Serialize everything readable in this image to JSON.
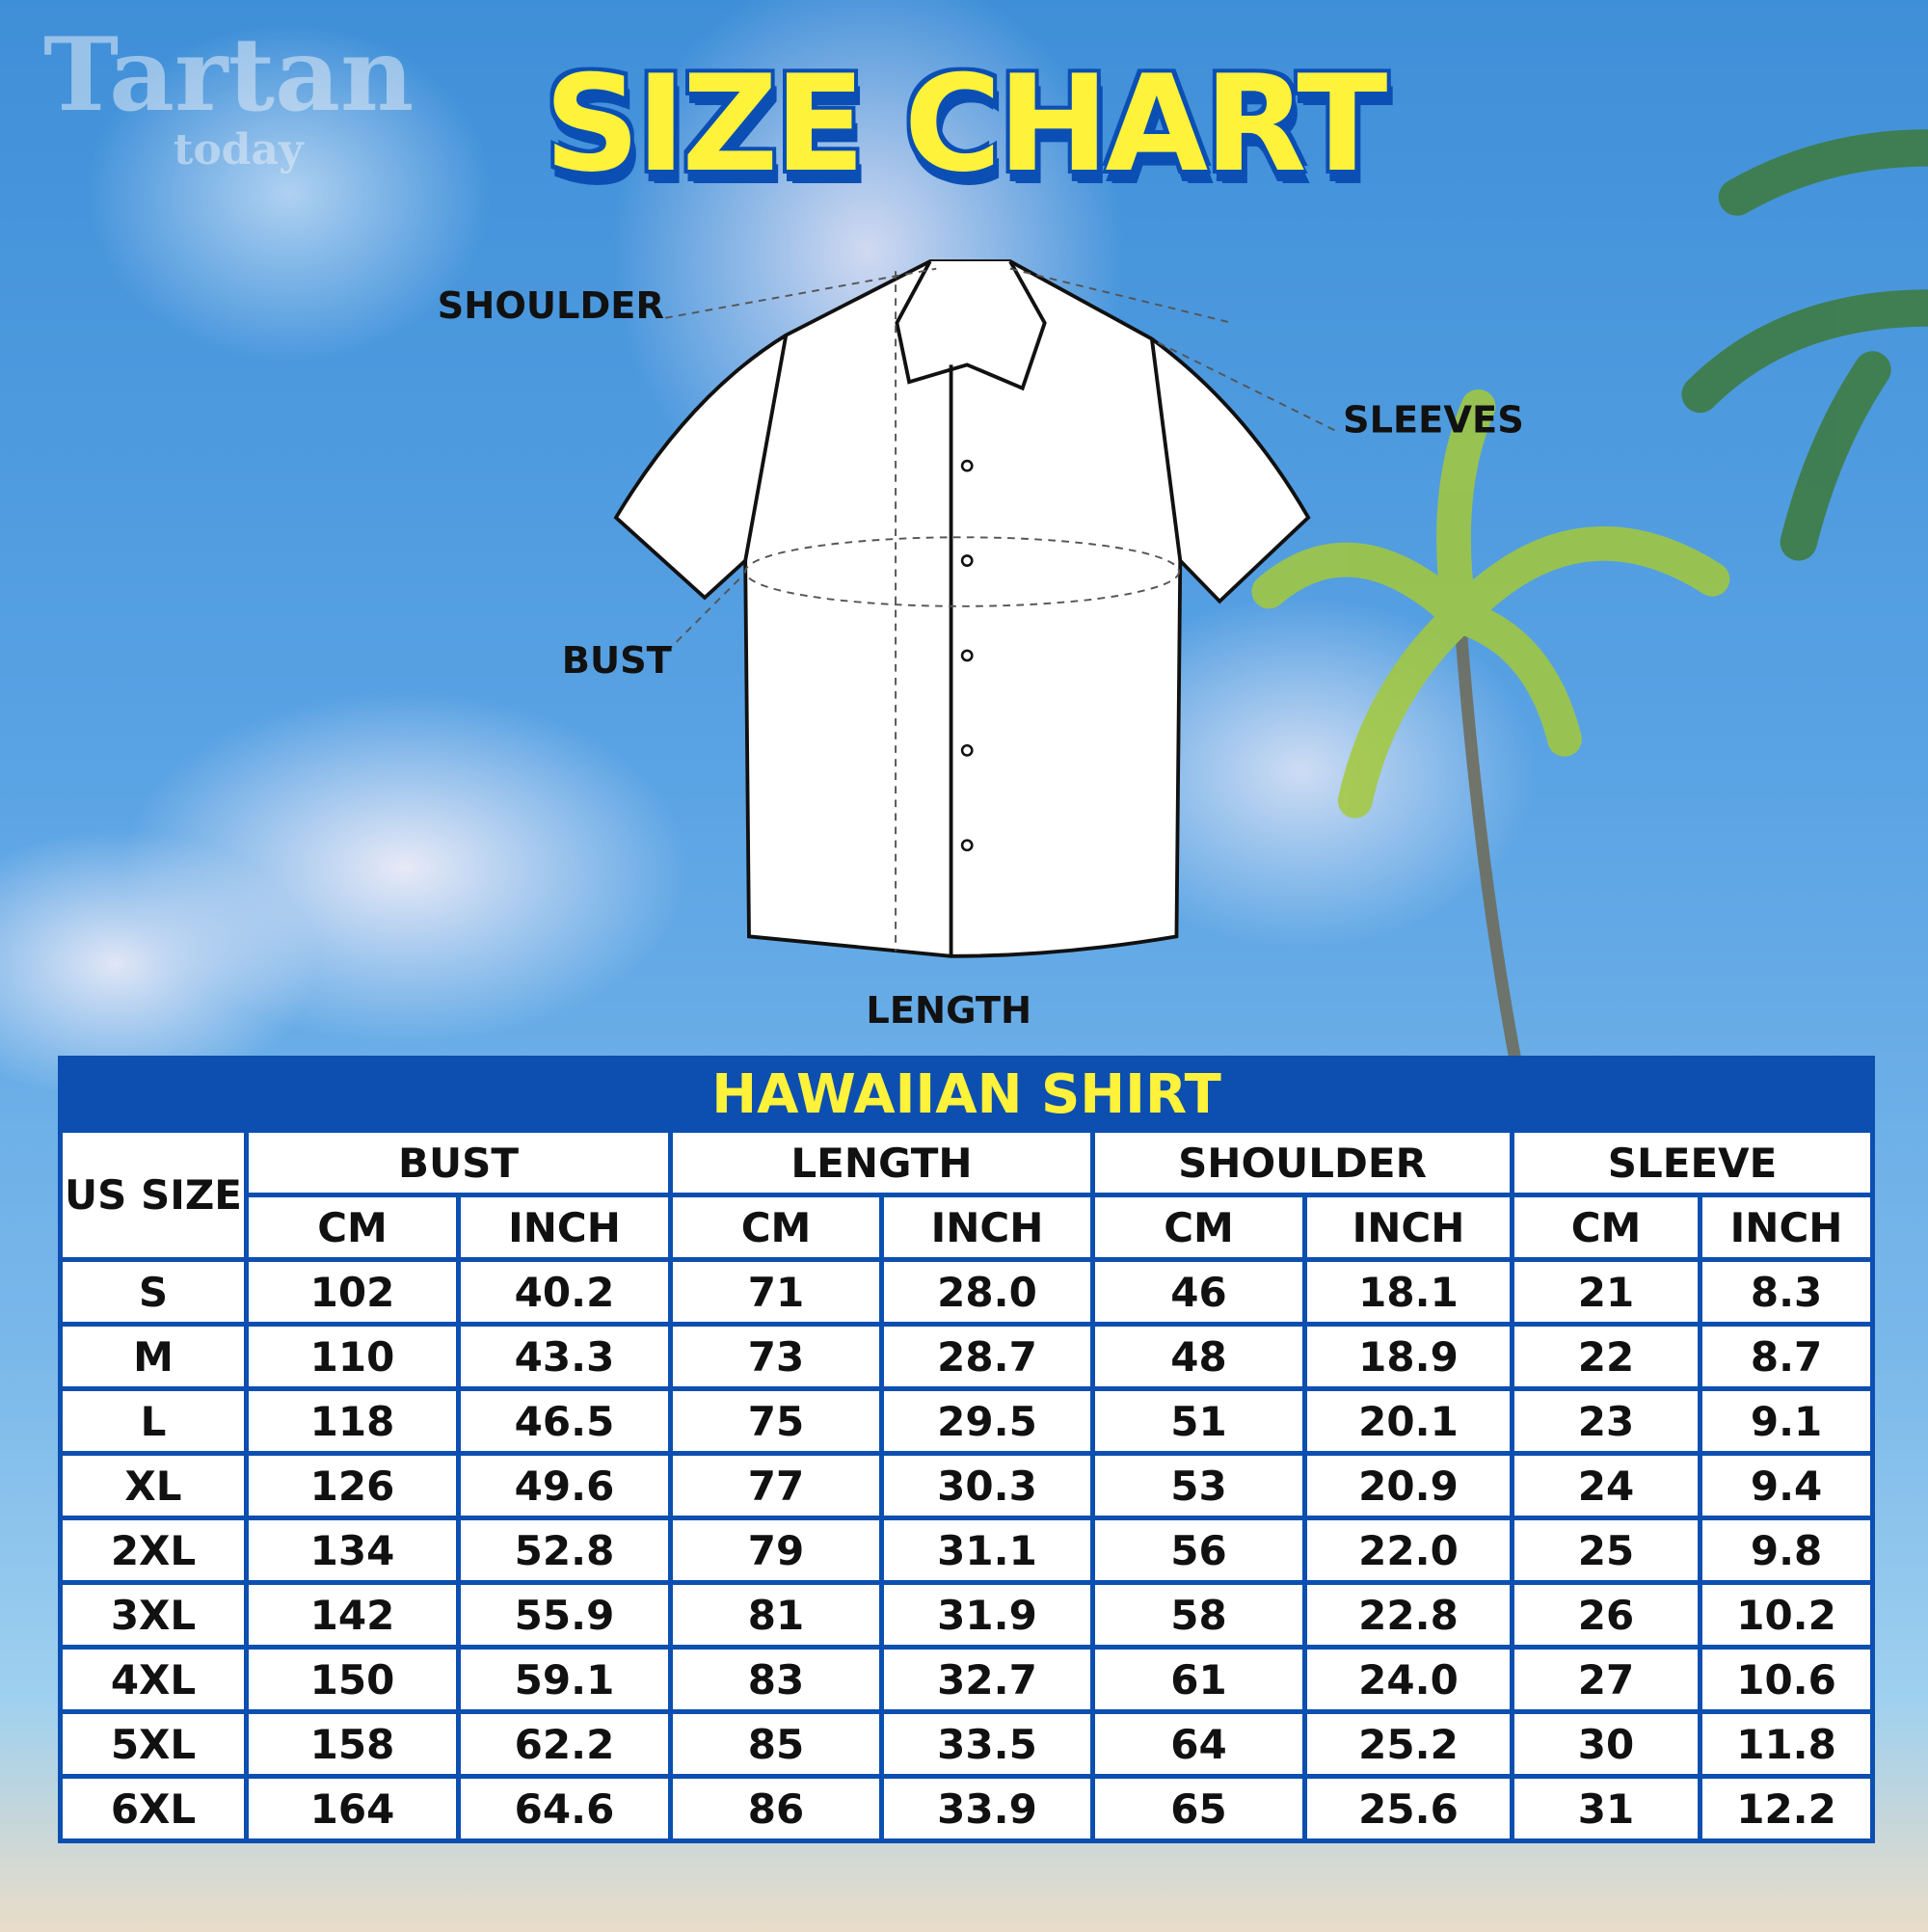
{
  "logo": {
    "line1": "Tartan",
    "line2": "today"
  },
  "title": "SIZE CHART",
  "diagram": {
    "shoulder": "SHOULDER",
    "sleeves": "SLEEVES",
    "bust": "BUST",
    "length": "LENGTH"
  },
  "table": {
    "title": "HAWAIIAN SHIRT",
    "size_header": "US SIZE",
    "groups": [
      "BUST",
      "LENGTH",
      "SHOULDER",
      "SLEEVE"
    ],
    "units": [
      "CM",
      "INCH",
      "CM",
      "INCH",
      "CM",
      "INCH",
      "CM",
      "INCH"
    ],
    "rows": [
      [
        "S",
        "102",
        "40.2",
        "71",
        "28.0",
        "46",
        "18.1",
        "21",
        "8.3"
      ],
      [
        "M",
        "110",
        "43.3",
        "73",
        "28.7",
        "48",
        "18.9",
        "22",
        "8.7"
      ],
      [
        "L",
        "118",
        "46.5",
        "75",
        "29.5",
        "51",
        "20.1",
        "23",
        "9.1"
      ],
      [
        "XL",
        "126",
        "49.6",
        "77",
        "30.3",
        "53",
        "20.9",
        "24",
        "9.4"
      ],
      [
        "2XL",
        "134",
        "52.8",
        "79",
        "31.1",
        "56",
        "22.0",
        "25",
        "9.8"
      ],
      [
        "3XL",
        "142",
        "55.9",
        "81",
        "31.9",
        "58",
        "22.8",
        "26",
        "10.2"
      ],
      [
        "4XL",
        "150",
        "59.1",
        "83",
        "32.7",
        "61",
        "24.0",
        "27",
        "10.6"
      ],
      [
        "5XL",
        "158",
        "62.2",
        "85",
        "33.5",
        "64",
        "25.2",
        "30",
        "11.8"
      ],
      [
        "6XL",
        "164",
        "64.6",
        "86",
        "33.9",
        "65",
        "25.6",
        "31",
        "12.2"
      ]
    ]
  },
  "colors": {
    "brand_blue": "#0c4fb0",
    "title_yellow": "#fff23a"
  }
}
